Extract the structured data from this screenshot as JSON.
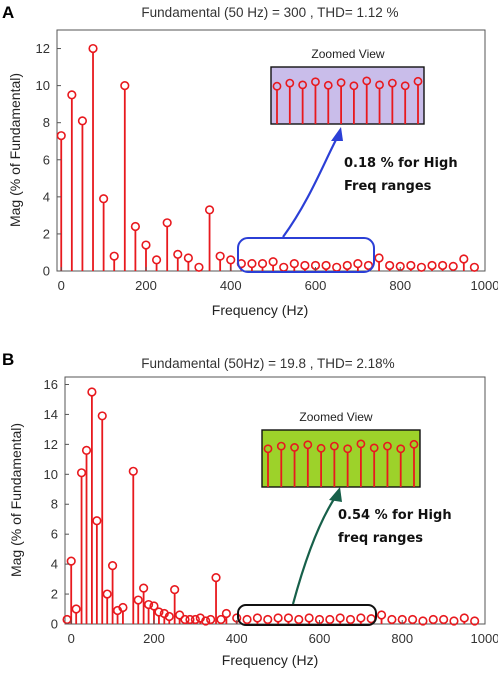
{
  "chart_data": [
    {
      "panel_label": "A",
      "type": "stem",
      "title": "Fundamental (50 Hz) = 300 , THD= 1.12 %",
      "xlabel": "Frequency (Hz)",
      "ylabel": "Mag (% of Fundamental)",
      "xlim": [
        -10,
        1000
      ],
      "ylim": [
        0,
        13
      ],
      "xticks": [
        0,
        200,
        400,
        600,
        800,
        1000
      ],
      "yticks": [
        0,
        2,
        4,
        6,
        8,
        10,
        12
      ],
      "colors": {
        "stem": "#e8191e",
        "zoom_box": "#2b3fd6",
        "zoom_fill": "#c9bdea",
        "arrow": "#2b3fd6"
      },
      "stems": {
        "x": [
          0,
          25,
          50,
          75,
          100,
          125,
          150,
          175,
          200,
          225,
          250,
          275,
          300,
          325,
          350,
          375,
          400,
          425,
          450,
          475,
          500,
          525,
          550,
          575,
          600,
          625,
          650,
          675,
          700,
          725,
          750,
          775,
          800,
          825,
          850,
          875,
          900,
          925,
          950,
          975
        ],
        "y": [
          7.3,
          9.5,
          8.1,
          12.0,
          3.9,
          0.8,
          10.0,
          2.4,
          1.4,
          0.6,
          2.6,
          0.9,
          0.7,
          0.2,
          3.3,
          0.8,
          0.6,
          0.4,
          0.4,
          0.4,
          0.5,
          0.2,
          0.4,
          0.3,
          0.3,
          0.3,
          0.2,
          0.3,
          0.4,
          0.3,
          0.7,
          0.3,
          0.25,
          0.3,
          0.2,
          0.3,
          0.3,
          0.25,
          0.65,
          0.2
        ]
      },
      "zoom": {
        "label": "Zoomed View",
        "values": [
          0.85,
          0.92,
          0.88,
          0.95,
          0.87,
          0.93,
          0.86,
          0.97,
          0.88,
          0.92,
          0.86,
          0.96
        ]
      },
      "annotation": {
        "line1": "0.18 % for High",
        "line2": "Freq ranges"
      }
    },
    {
      "panel_label": "B",
      "type": "stem",
      "title": "Fundamental (50Hz) = 19.8 , THD= 2.18%",
      "xlabel": "Frequency (Hz)",
      "ylabel": "Mag (% of Fundamental)",
      "xlim": [
        -15,
        1000
      ],
      "ylim": [
        0,
        16.5
      ],
      "xticks": [
        0,
        200,
        400,
        600,
        800,
        1000
      ],
      "yticks": [
        0,
        2,
        4,
        6,
        8,
        10,
        12,
        14,
        16
      ],
      "colors": {
        "stem": "#e8191e",
        "zoom_box": "#111111",
        "zoom_fill": "#9dd22a",
        "arrow": "#17604a"
      },
      "stems": {
        "x": [
          0,
          25,
          50,
          75,
          100,
          125,
          150,
          175,
          200,
          225,
          250,
          275,
          300,
          325,
          350,
          375,
          400,
          425,
          450,
          475,
          500,
          525,
          550,
          575,
          600,
          625,
          650,
          675,
          700,
          725,
          750,
          775,
          800,
          825,
          850,
          875,
          900,
          925,
          950,
          975,
          -10,
          12,
          37,
          62,
          87,
          112,
          162,
          187,
          212,
          237,
          262,
          287,
          312,
          337,
          362
        ],
        "y": [
          4.2,
          10.1,
          15.5,
          13.9,
          3.9,
          1.1,
          10.2,
          2.4,
          1.2,
          0.7,
          2.3,
          0.3,
          0.3,
          0.2,
          3.1,
          0.7,
          0.4,
          0.3,
          0.4,
          0.3,
          0.4,
          0.4,
          0.3,
          0.4,
          0.3,
          0.3,
          0.4,
          0.3,
          0.4,
          0.35,
          0.6,
          0.3,
          0.3,
          0.3,
          0.2,
          0.3,
          0.3,
          0.2,
          0.4,
          0.2,
          0.3,
          1.0,
          11.6,
          6.9,
          2.0,
          0.9,
          1.6,
          1.3,
          0.8,
          0.5,
          0.6,
          0.3,
          0.4,
          0.3,
          0.3
        ]
      },
      "zoom": {
        "label": "Zoomed View",
        "values": [
          0.86,
          0.92,
          0.89,
          0.95,
          0.87,
          0.92,
          0.86,
          0.97,
          0.88,
          0.92,
          0.86,
          0.96
        ]
      },
      "annotation": {
        "line1": "0.54 % for High",
        "line2": "freq ranges"
      }
    }
  ]
}
